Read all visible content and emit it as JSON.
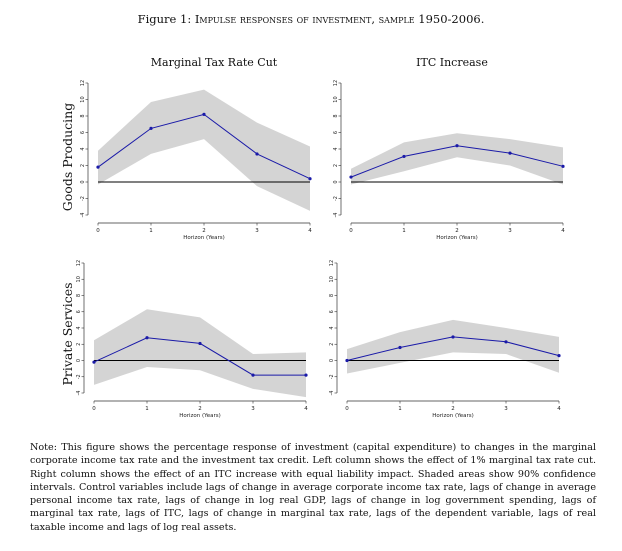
{
  "figure": {
    "label": "Figure 1:",
    "title": "Impulse responses of investment, sample 1950-2006."
  },
  "columns": [
    "Marginal Tax Rate Cut",
    "ITC Increase"
  ],
  "rows": [
    "Goods Producing",
    "Private Services"
  ],
  "note": "Note: This figure shows the percentage response of investment (capital expenditure) to changes in the marginal corporate income tax rate and the investment tax credit. Left column shows the effect of 1% marginal tax rate cut. Right column shows the effect of an ITC increase with equal liability impact. Shaded areas show 90% confidence intervals. Control variables include lags of change in average corporate income tax rate, lags of change in average personal income tax rate, lags of change in log real GDP, lags of change in log government spending, lags of marginal tax rate, lags of ITC, lags of change in marginal tax rate, lags of the dependent variable, lags of real taxable income and lags of log real assets.",
  "colors": {
    "line": "#1a1aa8",
    "band": "#d4d4d4",
    "zero": "#000000",
    "axis": "#333333"
  },
  "chart_data": [
    {
      "type": "line",
      "row": "Goods Producing",
      "column": "Marginal Tax Rate Cut",
      "xlabel": "Horizon (Years)",
      "x": [
        0,
        1,
        2,
        3,
        4
      ],
      "y": [
        1.8,
        6.5,
        8.2,
        3.4,
        0.4
      ],
      "ci_lower": [
        -0.3,
        3.4,
        5.2,
        -0.5,
        -3.5
      ],
      "ci_upper": [
        3.8,
        9.7,
        11.2,
        7.2,
        4.3
      ],
      "xticks": [
        "0",
        "1",
        "2",
        "3",
        "4"
      ],
      "yticks": [
        "12",
        "10",
        "8",
        "6",
        "4",
        "2",
        "0",
        "-2",
        "-4"
      ],
      "ylim": [
        -4,
        12
      ]
    },
    {
      "type": "line",
      "row": "Goods Producing",
      "column": "ITC Increase",
      "xlabel": "Horizon (Years)",
      "x": [
        0,
        1,
        2,
        3,
        4
      ],
      "y": [
        0.6,
        3.1,
        4.4,
        3.5,
        1.9
      ],
      "ci_lower": [
        -0.3,
        1.3,
        3.0,
        2.0,
        -0.3
      ],
      "ci_upper": [
        1.6,
        4.8,
        5.9,
        5.2,
        4.2
      ],
      "xticks": [
        "0",
        "1",
        "2",
        "3",
        "4"
      ],
      "yticks": [
        "12",
        "10",
        "8",
        "6",
        "4",
        "2",
        "0",
        "-2",
        "-4"
      ],
      "ylim": [
        -4,
        12
      ]
    },
    {
      "type": "line",
      "row": "Private Services",
      "column": "Marginal Tax Rate Cut",
      "xlabel": "Horizon (Years)",
      "x": [
        0,
        1,
        2,
        3,
        4
      ],
      "y": [
        -0.2,
        2.8,
        2.1,
        -1.8,
        -1.8
      ],
      "ci_lower": [
        -3.0,
        -0.8,
        -1.2,
        -3.5,
        -4.5
      ],
      "ci_upper": [
        2.5,
        6.3,
        5.3,
        0.8,
        1.0
      ],
      "xticks": [
        "0",
        "1",
        "2",
        "3",
        "4"
      ],
      "yticks": [
        "12",
        "10",
        "8",
        "6",
        "4",
        "2",
        "0",
        "-2",
        "-4"
      ],
      "ylim": [
        -4,
        12
      ]
    },
    {
      "type": "line",
      "row": "Private Services",
      "column": "ITC Increase",
      "xlabel": "Horizon (Years)",
      "x": [
        0,
        1,
        2,
        3,
        4
      ],
      "y": [
        0.0,
        1.6,
        2.9,
        2.3,
        0.6
      ],
      "ci_lower": [
        -1.6,
        -0.3,
        1.0,
        0.8,
        -1.5
      ],
      "ci_upper": [
        1.4,
        3.5,
        5.0,
        4.0,
        2.9
      ],
      "xticks": [
        "0",
        "1",
        "2",
        "3",
        "4"
      ],
      "yticks": [
        "12",
        "10",
        "8",
        "6",
        "4",
        "2",
        "0",
        "-2",
        "-4"
      ],
      "ylim": [
        -4,
        12
      ]
    }
  ]
}
